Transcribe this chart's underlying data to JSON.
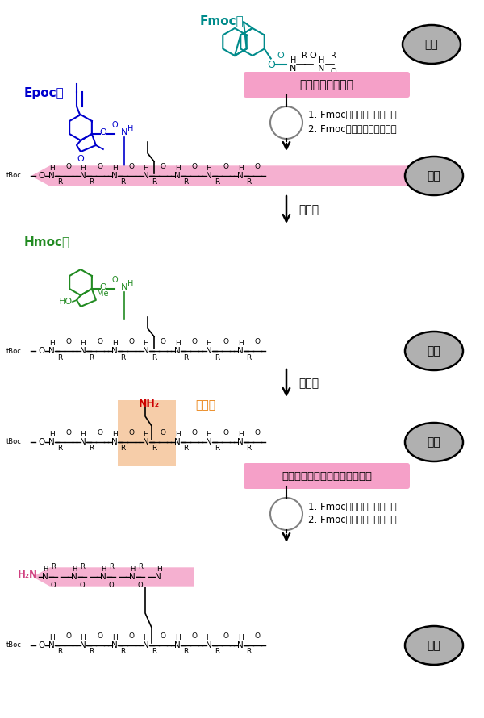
{
  "fig_width": 6.0,
  "fig_height": 8.9,
  "bg_color": "#ffffff",
  "teal": "#008B8B",
  "blue": "#0000CD",
  "green": "#228B22",
  "orange_text": "#E87800",
  "pink_bg": "#F5A0C8",
  "peach_bg": "#F5C8A0",
  "gray_fill": "#B0B0B0",
  "fmoc_label": "Fmoc基",
  "epoc_label": "Epoc基",
  "hmoc_label": "Hmoc基",
  "step1_label": "ペプチド鎖の伸長",
  "step1_sub1": "1. Fmoc基の除去（弱塩基）",
  "step1_sub2": "2. Fmoc保護アミノ酸の縮合",
  "step2_label": "金触媒",
  "step3_label": "弱塩基",
  "step4_label": "分岐点からのペプチド鎖の伸長",
  "step4_sub1": "1. Fmoc保護アミノ酸の縮合",
  "step4_sub2": "2. Fmoc基の除去（弱塩基）",
  "branch_label": "分岐点",
  "nh2_label": "NH₂",
  "jushi": "樹脂",
  "red": "#CC0000"
}
